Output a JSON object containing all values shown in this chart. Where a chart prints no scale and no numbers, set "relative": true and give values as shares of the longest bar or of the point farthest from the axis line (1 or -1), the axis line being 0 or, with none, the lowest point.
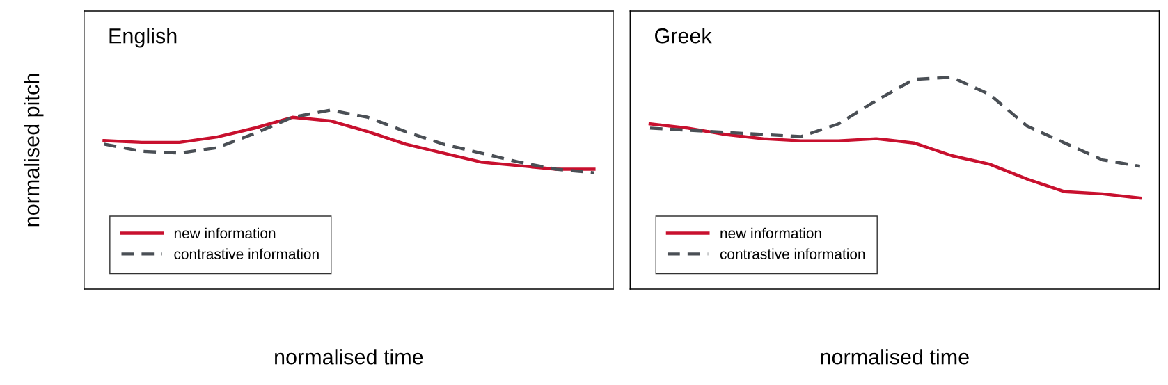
{
  "chart_data": [
    {
      "type": "line",
      "title": "English",
      "xlabel": "normalised time",
      "ylabel": "normalised pitch",
      "relative": true,
      "legend": "bottom left",
      "tick_labels": false,
      "categories": [
        null,
        null,
        null,
        null,
        null,
        null,
        null,
        null,
        null,
        null,
        null,
        null,
        null,
        null
      ],
      "series": [
        {
          "name": "new information",
          "color": "#c8102e",
          "line_style": "solid",
          "values": [
            0.83,
            0.82,
            0.82,
            0.85,
            0.9,
            0.96,
            0.94,
            0.88,
            0.81,
            0.76,
            0.71,
            0.69,
            0.67,
            0.67
          ]
        },
        {
          "name": "contrastive information",
          "color": "#4a4f55",
          "line_style": "dashed",
          "values": [
            0.81,
            0.77,
            0.76,
            0.79,
            0.87,
            0.96,
            1.0,
            0.96,
            0.88,
            0.81,
            0.76,
            0.71,
            0.67,
            0.65
          ]
        }
      ]
    },
    {
      "type": "line",
      "title": "Greek",
      "xlabel": "normalised time",
      "relative": true,
      "legend": "bottom left",
      "tick_labels": false,
      "categories": [
        null,
        null,
        null,
        null,
        null,
        null,
        null,
        null,
        null,
        null,
        null,
        null,
        null,
        null
      ],
      "series": [
        {
          "name": "new information",
          "color": "#c8102e",
          "line_style": "solid",
          "values": [
            0.78,
            0.76,
            0.73,
            0.71,
            0.7,
            0.7,
            0.71,
            0.69,
            0.63,
            0.59,
            0.52,
            0.46,
            0.45,
            0.43
          ]
        },
        {
          "name": "contrastive information",
          "color": "#4a4f55",
          "line_style": "dashed",
          "values": [
            0.76,
            0.75,
            0.74,
            0.73,
            0.72,
            0.78,
            0.89,
            0.99,
            1.0,
            0.92,
            0.77,
            0.69,
            0.61,
            0.58
          ]
        }
      ]
    }
  ]
}
